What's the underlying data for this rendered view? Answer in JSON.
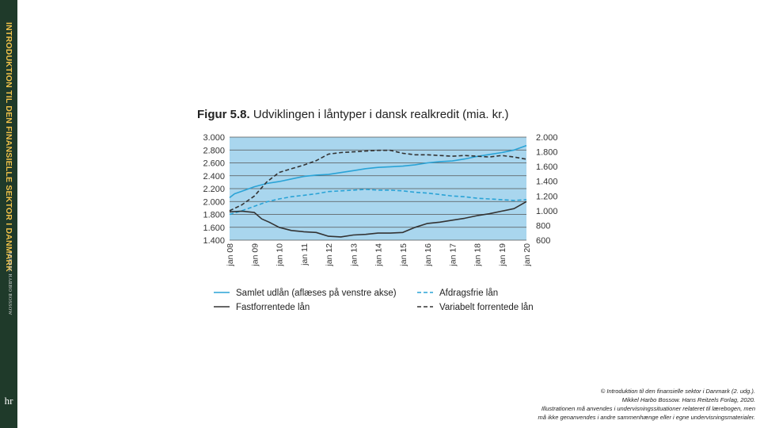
{
  "spine": {
    "title": "INTRODUKTION TIL DEN FINANSIELLE SEKTOR I DANMARK",
    "author": "MIKKEL HARBO BOSSOW",
    "logo": "hr"
  },
  "figure": {
    "number": "Figur 5.8.",
    "title": "Udviklingen i låntyper i dansk realkredit (mia. kr.)"
  },
  "chart_data": {
    "type": "line",
    "title": "Udviklingen i låntyper i dansk realkredit (mia. kr.)",
    "x_categories": [
      "jan 08",
      "jan 09",
      "jan 10",
      "jan 11",
      "jan 12",
      "jan 13",
      "jan 14",
      "jan 15",
      "jan 16",
      "jan 17",
      "jan 18",
      "jan 19",
      "jan 20"
    ],
    "left_axis": {
      "min": 1400,
      "max": 3000,
      "ticks": [
        "1.400",
        "1.600",
        "1.800",
        "2.000",
        "2.200",
        "2.400",
        "2.600",
        "2.800",
        "3.000"
      ]
    },
    "right_axis": {
      "min": 600,
      "max": 2000,
      "ticks": [
        "600",
        "800",
        "1.000",
        "1.200",
        "1.400",
        "1.600",
        "1.800",
        "2.000"
      ]
    },
    "background_color": "#a9d6ee",
    "series": [
      {
        "name": "Samlet udlån (aflæses på venstre akse)",
        "axis": "left",
        "color": "#2aa3d6",
        "style": "solid",
        "x": [
          2008,
          2008.2,
          2008.5,
          2009,
          2009.5,
          2010,
          2010.5,
          2011,
          2011.5,
          2012,
          2012.5,
          2013,
          2013.5,
          2014,
          2014.5,
          2015,
          2015.5,
          2016,
          2016.5,
          2017,
          2017.5,
          2018,
          2018.5,
          2019,
          2019.5,
          2020
        ],
        "values": [
          2060,
          2120,
          2160,
          2230,
          2280,
          2310,
          2350,
          2390,
          2410,
          2420,
          2450,
          2480,
          2510,
          2530,
          2540,
          2550,
          2570,
          2600,
          2620,
          2630,
          2660,
          2700,
          2730,
          2760,
          2800,
          2870
        ]
      },
      {
        "name": "Afdragsfrie lån",
        "axis": "right",
        "color": "#2aa3d6",
        "style": "dashed",
        "x": [
          2008,
          2008.5,
          2009,
          2009.5,
          2010,
          2010.5,
          2011,
          2011.5,
          2012,
          2012.5,
          2013,
          2013.5,
          2014,
          2014.5,
          2015,
          2015.5,
          2016,
          2016.5,
          2017,
          2017.5,
          2018,
          2018.5,
          2019,
          2019.5,
          2020
        ],
        "values": [
          950,
          1000,
          1060,
          1120,
          1160,
          1190,
          1210,
          1230,
          1260,
          1270,
          1280,
          1290,
          1280,
          1280,
          1270,
          1250,
          1240,
          1220,
          1200,
          1190,
          1170,
          1160,
          1150,
          1140,
          1150
        ]
      },
      {
        "name": "Fastforrentede lån",
        "axis": "left",
        "color": "#333333",
        "style": "solid",
        "x": [
          2008,
          2008.5,
          2009,
          2009.3,
          2009.6,
          2010,
          2010.5,
          2011,
          2011.5,
          2012,
          2012.5,
          2013,
          2013.5,
          2014,
          2014.5,
          2015,
          2015.5,
          2016,
          2016.5,
          2017,
          2017.5,
          2018,
          2018.5,
          2019,
          2019.5,
          2020
        ],
        "values": [
          1840,
          1850,
          1830,
          1730,
          1680,
          1600,
          1550,
          1530,
          1520,
          1460,
          1450,
          1480,
          1490,
          1510,
          1510,
          1520,
          1600,
          1660,
          1680,
          1710,
          1740,
          1780,
          1810,
          1850,
          1890,
          2000
        ]
      },
      {
        "name": "Variabelt forrentede lån",
        "axis": "right",
        "color": "#333333",
        "style": "dashed",
        "x": [
          2008,
          2008.5,
          2009,
          2009.5,
          2010,
          2010.5,
          2011,
          2011.5,
          2012,
          2012.5,
          2013,
          2013.5,
          2014,
          2014.5,
          2015,
          2015.5,
          2016,
          2016.5,
          2017,
          2017.5,
          2018,
          2018.5,
          2019,
          2019.5,
          2020
        ],
        "values": [
          1000,
          1080,
          1200,
          1390,
          1520,
          1570,
          1620,
          1680,
          1770,
          1790,
          1800,
          1810,
          1820,
          1820,
          1780,
          1760,
          1760,
          1750,
          1740,
          1750,
          1740,
          1730,
          1750,
          1730,
          1700
        ]
      }
    ],
    "legend_placement": "bottom"
  },
  "copyright": {
    "line1": "© Introduktion til den finansielle sektor i Danmark (2. udg.).",
    "line2": "Mikkel Harbo Bossow. Hans Reitzels Forlag, 2020.",
    "line3": "Illustrationen må anvendes i undervisningssituationer relateret til lærebogen, men",
    "line4": "må ikke genanvendes i andre sammenhænge eller i egne undervisningsmaterialer."
  }
}
